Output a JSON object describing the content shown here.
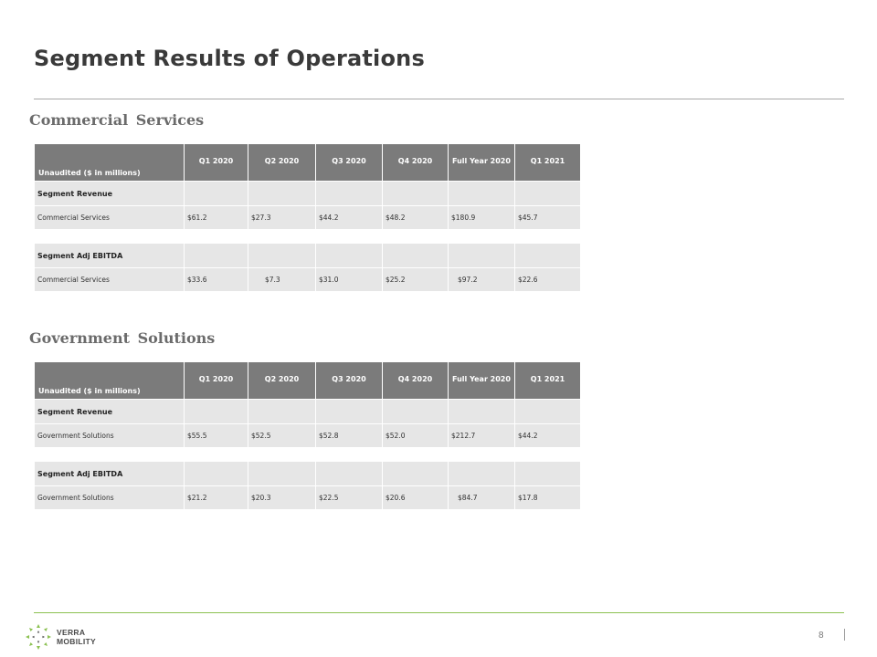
{
  "page": {
    "title": "Segment Results of Operations",
    "page_number": "8",
    "logo": {
      "line1": "VERRA",
      "line2": "MOBILITY",
      "icon": "verra-starburst-icon",
      "color": "#8cc152"
    }
  },
  "colors": {
    "header_bg": "#7b7b7b",
    "row_bg": "#e6e6e6",
    "accent": "#8cc152"
  },
  "columns": [
    "Q1 2020",
    "Q2 2020",
    "Q3 2020",
    "Q4 2020",
    "Full Year 2020",
    "Q1 2021"
  ],
  "sections": [
    {
      "title": "Commercial  Services",
      "header_label": "Unaudited ($ in millions)",
      "revenue_label": "Segment Revenue",
      "revenue_row": {
        "label": "Commercial Services",
        "values": [
          "$61.2",
          "$27.3",
          "$44.2",
          "$48.2",
          "$180.9",
          "$45.7"
        ]
      },
      "ebitda_label": "Segment Adj EBITDA",
      "ebitda_row": {
        "label": "Commercial Services",
        "values": [
          "$33.6",
          "$7.3",
          "$31.0",
          "$25.2",
          "$97.2",
          "$22.6"
        ]
      }
    },
    {
      "title": "Government  Solutions",
      "header_label": "Unaudited ($ in millions)",
      "revenue_label": "Segment Revenue",
      "revenue_row": {
        "label": "Government Solutions",
        "values": [
          "$55.5",
          "$52.5",
          "$52.8",
          "$52.0",
          "$212.7",
          "$44.2"
        ]
      },
      "ebitda_label": "Segment Adj EBITDA",
      "ebitda_row": {
        "label": "Government Solutions",
        "values": [
          "$21.2",
          "$20.3",
          "$22.5",
          "$20.6",
          "$84.7",
          "$17.8"
        ]
      }
    }
  ]
}
